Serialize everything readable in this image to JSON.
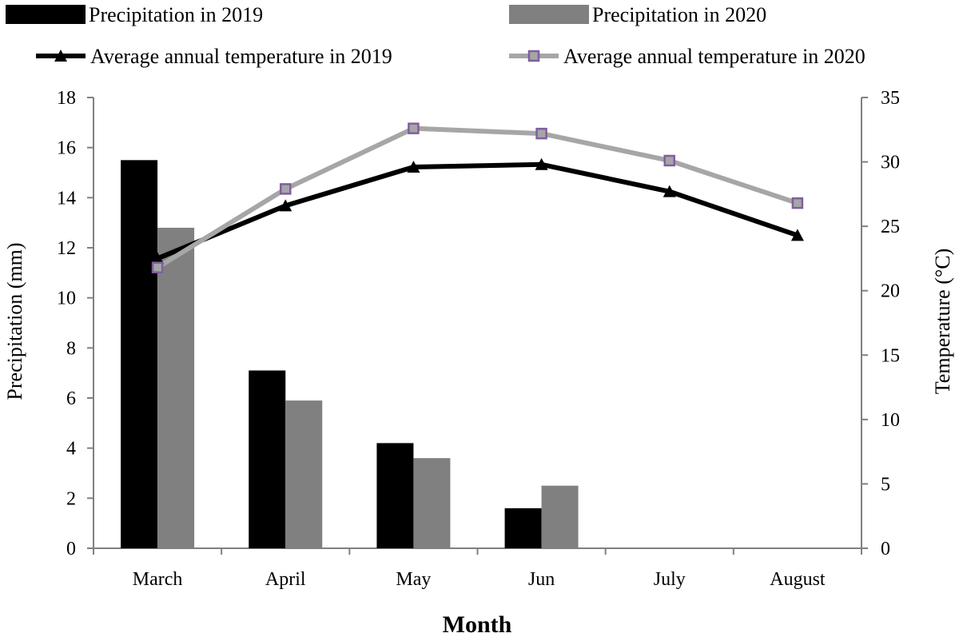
{
  "chart_data": {
    "type": "bar",
    "categories": [
      "March",
      "April",
      "May",
      "Jun",
      "July",
      "August"
    ],
    "xlabel": "Month",
    "ylabel": "Precipitation (mm)",
    "y2label": "Temperature (°C)",
    "ylim": [
      0,
      18
    ],
    "y2lim": [
      0,
      35
    ],
    "yticks": [
      "0",
      "2",
      "4",
      "6",
      "8",
      "10",
      "12",
      "14",
      "16",
      "18"
    ],
    "y2ticks": [
      "0",
      "5",
      "10",
      "15",
      "20",
      "25",
      "30",
      "35"
    ],
    "grid": false,
    "legend_position": "top",
    "bar_series": [
      {
        "name": "Precipitation in 2019",
        "color": "#000000",
        "values": [
          15.5,
          7.1,
          4.2,
          1.6,
          null,
          null
        ]
      },
      {
        "name": "Precipitation in 2020",
        "color": "#808080",
        "values": [
          12.8,
          5.9,
          3.6,
          2.5,
          null,
          null
        ]
      }
    ],
    "line_series": [
      {
        "name": "Average annual temperature in 2019",
        "axis": "right",
        "color": "#000000",
        "marker": "triangle",
        "values": [
          22.5,
          26.6,
          29.6,
          29.8,
          27.7,
          24.3
        ]
      },
      {
        "name": "Average annual temperature in 2020",
        "axis": "right",
        "color": "#a6a6a6",
        "marker_color": "#7f5fa0",
        "marker": "square",
        "values": [
          21.8,
          27.9,
          32.6,
          32.2,
          30.1,
          26.8
        ]
      }
    ]
  }
}
